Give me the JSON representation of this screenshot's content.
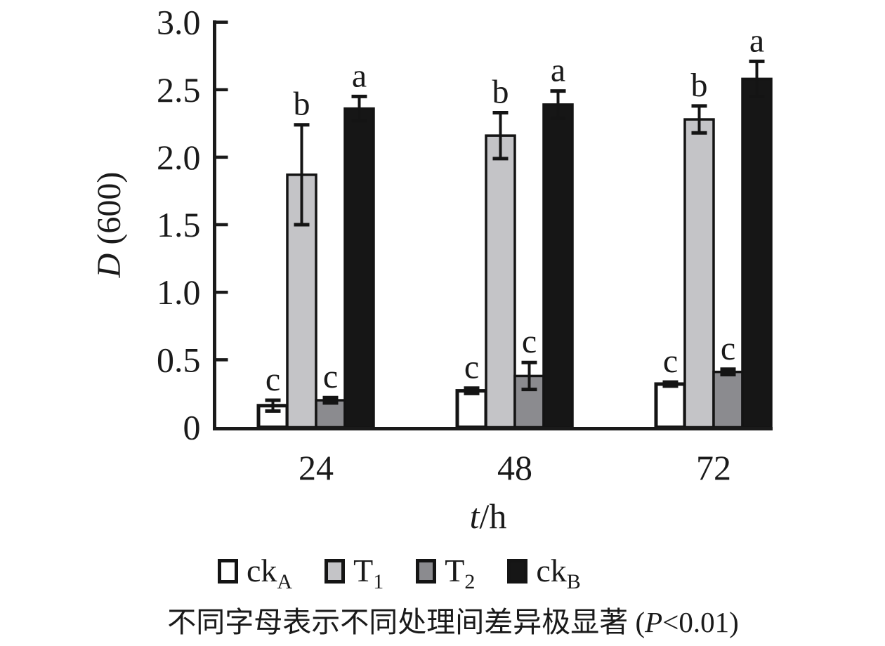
{
  "figure": {
    "y_axis_title": {
      "italic_part": "D",
      "rest_part": " (600)"
    },
    "x_axis_title": {
      "italic_part": "t",
      "rest_part": "/h"
    },
    "legend": {
      "items": [
        {
          "label": "ck",
          "sub": "A",
          "color": "#ffffff"
        },
        {
          "label": "T",
          "sub": "1",
          "color": "#c4c4c7"
        },
        {
          "label": "T",
          "sub": "2",
          "color": "#8b8b8f"
        },
        {
          "label": "ck",
          "sub": "B",
          "color": "#161616"
        }
      ]
    },
    "caption": {
      "prefix": "不同字母表示不同处理间差异极显著 (",
      "italic": "P",
      "suffix": "<0.01)"
    }
  },
  "chart_data": {
    "type": "bar",
    "title": "",
    "xlabel": "t/h",
    "ylabel": "D (600)",
    "ylim": [
      0,
      3.0
    ],
    "ytick_step": 0.5,
    "ytick_labels": [
      "0",
      "0.5",
      "1.0",
      "1.5",
      "2.0",
      "2.5",
      "3.0"
    ],
    "grid": false,
    "legend_position": "bottom",
    "categories": [
      "24",
      "48",
      "72"
    ],
    "series": [
      {
        "name": "ckA",
        "color": "#ffffff",
        "edge_color": "#141414",
        "values": [
          0.16,
          0.27,
          0.32
        ],
        "errors": [
          0.04,
          0.02,
          0.015
        ],
        "sig_letters": [
          "c",
          "c",
          "c"
        ]
      },
      {
        "name": "T1",
        "color": "#c4c4c7",
        "edge_color": "#141414",
        "values": [
          1.87,
          2.16,
          2.28
        ],
        "errors": [
          0.37,
          0.17,
          0.1
        ],
        "sig_letters": [
          "b",
          "b",
          "b"
        ]
      },
      {
        "name": "T2",
        "color": "#8b8b8f",
        "edge_color": "#141414",
        "values": [
          0.2,
          0.38,
          0.41
        ],
        "errors": [
          0.02,
          0.1,
          0.02
        ],
        "sig_letters": [
          "c",
          "c",
          "c"
        ]
      },
      {
        "name": "ckB",
        "color": "#161616",
        "edge_color": "#141414",
        "values": [
          2.36,
          2.39,
          2.58
        ],
        "errors": [
          0.09,
          0.1,
          0.13
        ],
        "sig_letters": [
          "a",
          "a",
          "a"
        ]
      }
    ],
    "annotation": "不同字母表示不同处理间差异极显著 (P<0.01)"
  }
}
